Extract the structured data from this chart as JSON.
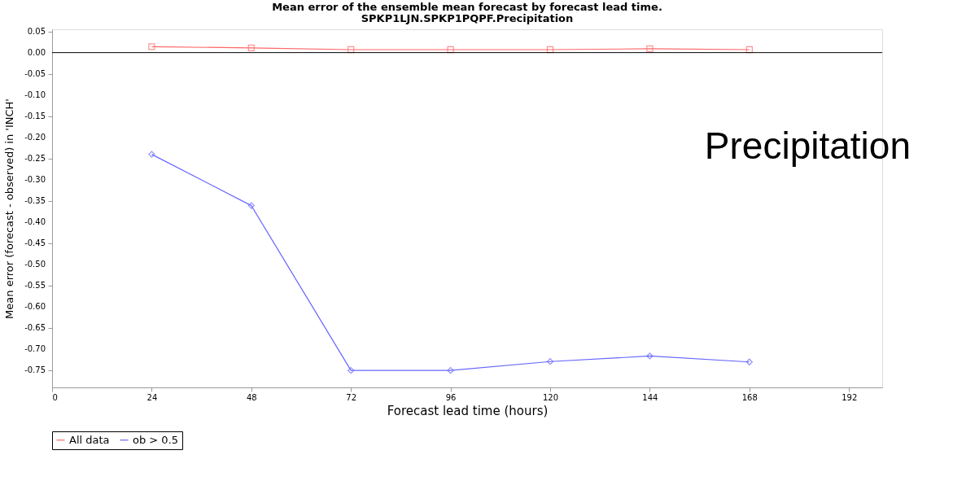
{
  "chart_data": {
    "type": "line",
    "title": "Mean error of the ensemble mean forecast by forecast lead time.",
    "subtitle": "SPKP1LJN.SPKP1PQPF.Precipitation",
    "xlabel": "Forecast lead time (hours)",
    "ylabel": "Mean error (forecast - observed) in 'INCH'",
    "x": [
      24,
      48,
      72,
      96,
      120,
      144,
      168
    ],
    "series": [
      {
        "name": "All data",
        "color": "#ff6666",
        "marker": "square",
        "values": [
          0.014,
          0.011,
          0.007,
          0.007,
          0.007,
          0.009,
          0.007
        ]
      },
      {
        "name": "ob > 0.5",
        "color": "#6666ff",
        "marker": "diamond",
        "values": [
          -0.24,
          -0.361,
          -0.75,
          -0.75,
          -0.729,
          -0.716,
          -0.73
        ]
      }
    ],
    "xlim": [
      0,
      200
    ],
    "xticks": [
      0,
      24,
      48,
      72,
      96,
      120,
      144,
      168,
      192
    ],
    "ylim": [
      -0.79,
      0.055
    ],
    "yticks": [
      {
        "value": 0.05,
        "label": "0.05"
      },
      {
        "value": 0,
        "label": "0.00"
      },
      {
        "value": -0.05,
        "label": "-0.05"
      },
      {
        "value": -0.1,
        "label": "-0.10"
      },
      {
        "value": -0.15,
        "label": "-0.15"
      },
      {
        "value": -0.2,
        "label": "-0.20"
      },
      {
        "value": -0.25,
        "label": "-0.25"
      },
      {
        "value": -0.3,
        "label": "-0.30"
      },
      {
        "value": -0.35,
        "label": "-0.35"
      },
      {
        "value": -0.4,
        "label": "-0.40"
      },
      {
        "value": -0.45,
        "label": "-0.45"
      },
      {
        "value": -0.5,
        "label": "-0.50"
      },
      {
        "value": -0.55,
        "label": "-0.55"
      },
      {
        "value": -0.6,
        "label": "-0.60"
      },
      {
        "value": -0.65,
        "label": "-0.65"
      },
      {
        "value": -0.7,
        "label": "-0.70"
      },
      {
        "value": -0.75,
        "label": "-0.75"
      }
    ],
    "ref_lines": [
      {
        "axis": "y",
        "value": 0,
        "color": "#000000"
      }
    ],
    "annotations": [
      "Precipitation"
    ],
    "legend": "bottom",
    "grid": false,
    "line_style": "solid"
  }
}
